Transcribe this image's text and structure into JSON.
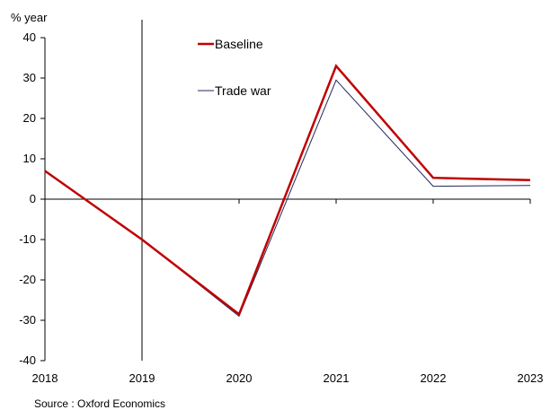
{
  "chart_data": {
    "type": "line",
    "x": [
      "2018",
      "2019",
      "2020",
      "2021",
      "2022",
      "2023"
    ],
    "series": [
      {
        "name": "Baseline",
        "color": "#c00000",
        "values": [
          7,
          -10,
          -28.5,
          33,
          5.3,
          4.7
        ]
      },
      {
        "name": "Trade war",
        "color": "#1f2a5a",
        "values": [
          7,
          -10,
          -29,
          29.5,
          3.2,
          3.4
        ]
      }
    ],
    "ylabel": "% year",
    "ylim": [
      -40,
      40
    ],
    "yticks": [
      40,
      30,
      20,
      10,
      0,
      -10,
      -20,
      -30,
      -40
    ],
    "vline_at": "2019",
    "legend_position": "top-center",
    "grid": false,
    "source": "Source : Oxford Economics"
  }
}
